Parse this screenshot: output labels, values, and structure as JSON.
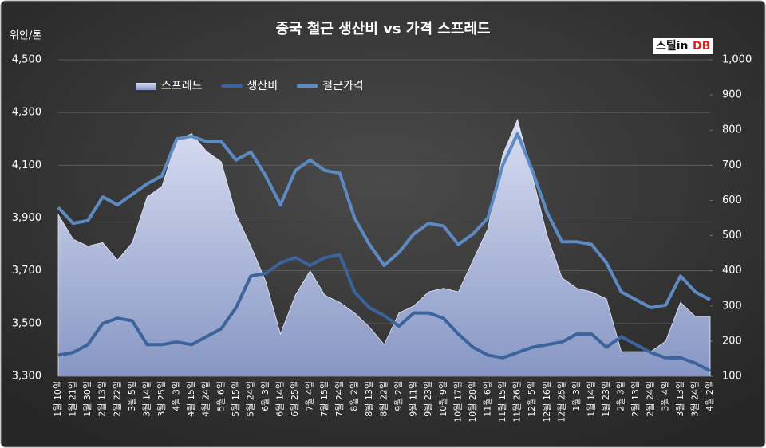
{
  "chart_data": {
    "type": "line",
    "title": "중국 철근 생산비 vs 가격 스프레드",
    "logo": [
      "스틸in",
      "DB"
    ],
    "y_label": "위안/톤",
    "categories": [
      "1월 10일",
      "1월 21일",
      "1월 30일",
      "2월 13일",
      "2월 22일",
      "3월 5일",
      "3월 14일",
      "3월 25일",
      "4월 3일",
      "4월 15일",
      "4월 24일",
      "5월 6일",
      "5월 15일",
      "5월 24일",
      "6월 3일",
      "6월 14일",
      "6월 25일",
      "7월 4일",
      "7월 15일",
      "7월 24일",
      "8월 2일",
      "8월 13일",
      "8월 22일",
      "9월 2일",
      "9월 11일",
      "9월 23일",
      "10월 9일",
      "10월 17일",
      "10월 28일",
      "11월 6일",
      "11월 15일",
      "11월 26일",
      "12월 5일",
      "12월 16일",
      "12월 25일",
      "1월 3일",
      "1월 14일",
      "1월 23일",
      "2월 3일",
      "2월 13일",
      "2월 24일",
      "3월 4일",
      "3월 13일",
      "3월 24일",
      "4월 2일"
    ],
    "series": [
      {
        "name": "스프레드",
        "kind": "area",
        "axis": "y2",
        "color": "#b8c4e4",
        "values": [
          560,
          490,
          470,
          480,
          430,
          480,
          610,
          640,
          770,
          790,
          740,
          710,
          560,
          470,
          370,
          220,
          330,
          400,
          330,
          310,
          280,
          240,
          190,
          280,
          300,
          340,
          350,
          340,
          430,
          520,
          730,
          830,
          670,
          500,
          380,
          350,
          340,
          320,
          170,
          170,
          170,
          200,
          310,
          270,
          270
        ]
      },
      {
        "name": "생산비",
        "kind": "line",
        "color": "#3b639c",
        "values": [
          3380,
          3390,
          3420,
          3500,
          3520,
          3510,
          3420,
          3420,
          3430,
          3420,
          3450,
          3480,
          3560,
          3680,
          3690,
          3730,
          3750,
          3720,
          3750,
          3760,
          3620,
          3560,
          3530,
          3490,
          3540,
          3540,
          3520,
          3460,
          3410,
          3380,
          3370,
          3390,
          3410,
          3420,
          3430,
          3460,
          3460,
          3410,
          3450,
          3420,
          3390,
          3370,
          3370,
          3350,
          3320
        ]
      },
      {
        "name": "철근가격",
        "kind": "line",
        "color": "#5e8ac4",
        "values": [
          3940,
          3880,
          3890,
          3980,
          3950,
          3990,
          4030,
          4060,
          4200,
          4210,
          4190,
          4190,
          4120,
          4150,
          4060,
          3950,
          4080,
          4120,
          4080,
          4070,
          3900,
          3800,
          3720,
          3770,
          3840,
          3880,
          3870,
          3800,
          3840,
          3900,
          4100,
          4220,
          4080,
          3920,
          3810,
          3810,
          3800,
          3730,
          3620,
          3590,
          3560,
          3570,
          3680,
          3620,
          3590
        ]
      }
    ],
    "ylim": [
      3300,
      4500
    ],
    "yticks": [
      {
        "value": 3300,
        "label": "3,300"
      },
      {
        "value": 3500,
        "label": "3,500"
      },
      {
        "value": 3700,
        "label": "3,700"
      },
      {
        "value": 3900,
        "label": "3,900"
      },
      {
        "value": 4100,
        "label": "4,100"
      },
      {
        "value": 4300,
        "label": "4,300"
      },
      {
        "value": 4500,
        "label": "4,500"
      }
    ],
    "y2lim": [
      100,
      1000
    ],
    "y2ticks": [
      100,
      200,
      300,
      400,
      500,
      600,
      700,
      800,
      900,
      {
        "value": 1000,
        "label": "1,000"
      }
    ],
    "grid": true
  }
}
